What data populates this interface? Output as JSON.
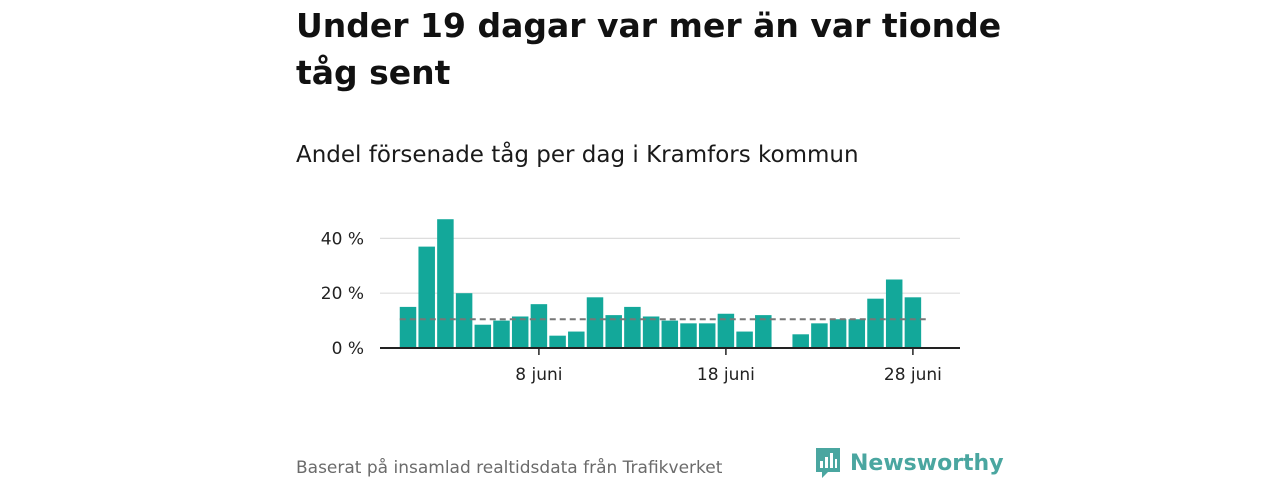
{
  "title": "Under 19 dagar var mer än var tionde tåg sent",
  "subtitle": "Andel försenade tåg per dag i Kramfors kommun",
  "footer": {
    "source": "Baserat på insamlad realtidsdata från Trafikverket",
    "brand": "Newsworthy"
  },
  "colors": {
    "bar": "#13a89a",
    "grid": "#dddddd",
    "axis": "#222222",
    "reference": "#777777",
    "brand": "#4aa6a0"
  },
  "chart_data": {
    "type": "bar",
    "title": "Andel försenade tåg per dag i Kramfors kommun",
    "xlabel": "",
    "ylabel": "",
    "x_unit": "day of June",
    "x": [
      1,
      2,
      3,
      4,
      5,
      6,
      7,
      8,
      9,
      10,
      11,
      12,
      13,
      14,
      15,
      16,
      17,
      18,
      19,
      20,
      21,
      22,
      23,
      24,
      25,
      26,
      27,
      28,
      29
    ],
    "values": [
      15,
      37,
      47,
      20,
      8.5,
      10,
      11.5,
      16,
      4.5,
      6,
      18.5,
      12,
      15,
      11.5,
      10,
      9,
      9,
      12.5,
      6,
      12,
      null,
      5,
      9,
      10.5,
      10.5,
      18,
      25,
      18.5,
      null
    ],
    "xticks": [
      {
        "day": 8,
        "label": "8 juni"
      },
      {
        "day": 18,
        "label": "18 juni"
      },
      {
        "day": 28,
        "label": "28 juni"
      }
    ],
    "yticks": [
      {
        "value": 0,
        "label": "0 %"
      },
      {
        "value": 20,
        "label": "20 %"
      },
      {
        "value": 40,
        "label": "40 %"
      }
    ],
    "ylim": [
      0,
      50
    ],
    "reference_line": 10.5,
    "grid": true
  }
}
